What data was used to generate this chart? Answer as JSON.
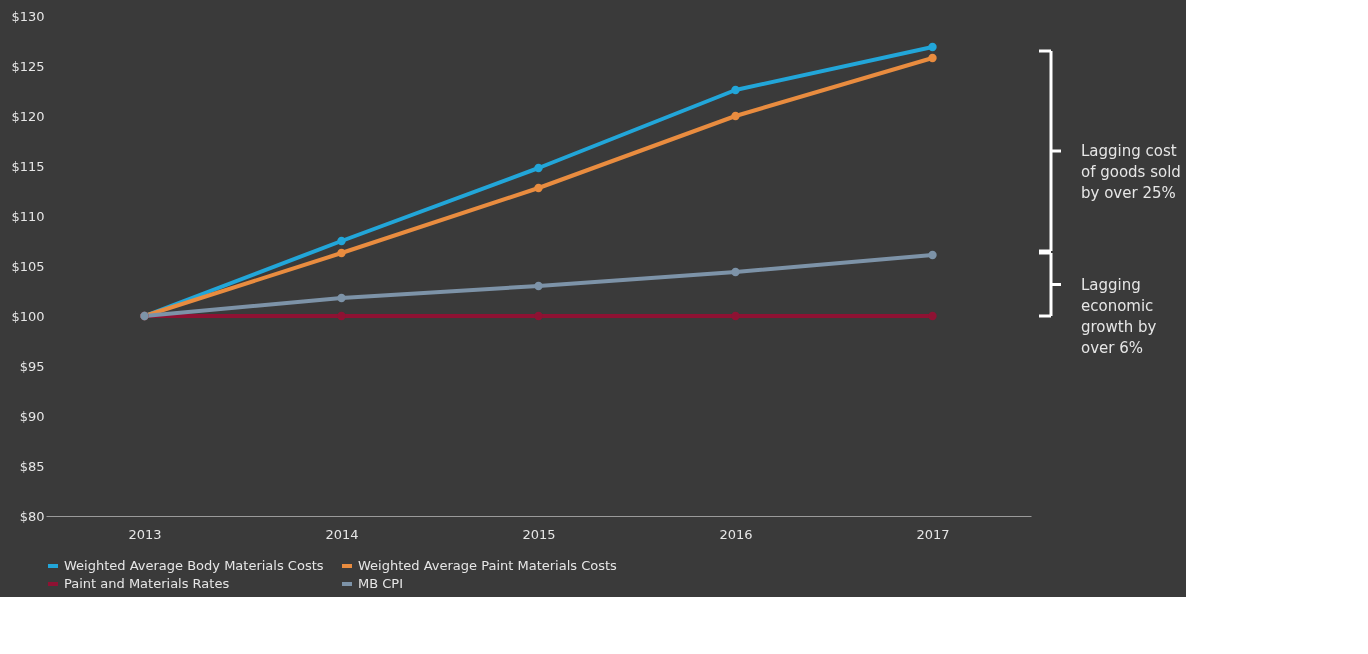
{
  "chart_data": {
    "type": "line",
    "categories": [
      "2013",
      "2014",
      "2015",
      "2016",
      "2017"
    ],
    "series": [
      {
        "name": "Weighted Average Body Materials Costs",
        "color": "#22a6d9",
        "values": [
          100,
          107.5,
          114.8,
          122.6,
          126.9
        ]
      },
      {
        "name": "Weighted Average Paint Materials Costs",
        "color": "#e98c3f",
        "values": [
          100,
          106.3,
          112.8,
          120.0,
          125.8
        ]
      },
      {
        "name": "Paint and Materials Rates",
        "color": "#8e1233",
        "values": [
          100,
          100,
          100,
          100,
          100
        ]
      },
      {
        "name": "MB CPI",
        "color": "#7d93a8",
        "values": [
          100,
          101.8,
          103.0,
          104.4,
          106.1
        ]
      }
    ],
    "ylim": [
      80,
      130
    ],
    "yticks": [
      {
        "value": 80,
        "label": "$80"
      },
      {
        "value": 85,
        "label": "$85"
      },
      {
        "value": 90,
        "label": "$90"
      },
      {
        "value": 95,
        "label": "$95"
      },
      {
        "value": 100,
        "label": "$100"
      },
      {
        "value": 105,
        "label": "$105"
      },
      {
        "value": 110,
        "label": "$110"
      },
      {
        "value": 115,
        "label": "$115"
      },
      {
        "value": 120,
        "label": "$120"
      },
      {
        "value": 125,
        "label": "$125"
      },
      {
        "value": 130,
        "label": "$130"
      }
    ],
    "annotations": [
      "Lagging cost\nof goods sold\nby over 25%",
      "Lagging\neconomic\ngrowth by\nover 6%"
    ],
    "marker": "circle",
    "line_style": "solid",
    "grid": false,
    "legend": "bottom"
  }
}
